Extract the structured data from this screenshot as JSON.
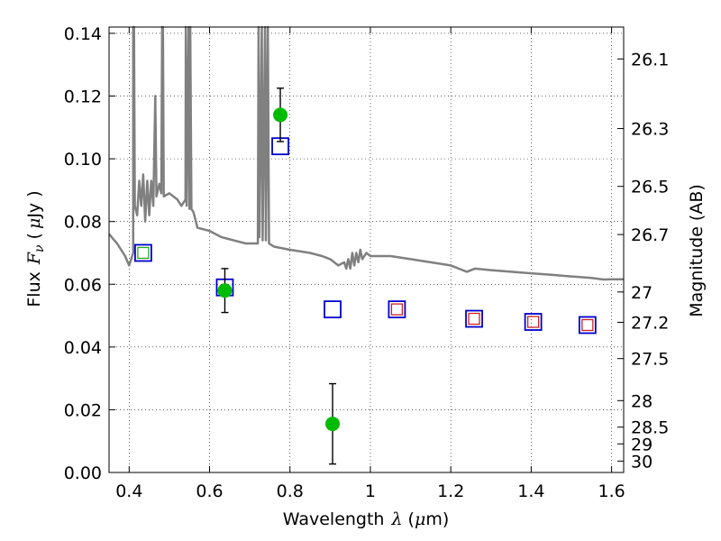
{
  "chart_data": {
    "type": "scatter",
    "xlabel": {
      "main": "Wavelength",
      "sym": "λ",
      "unit_open": "(",
      "unit_mu": "μ",
      "unit_rest": "m)"
    },
    "ylabel": {
      "main": "Flux",
      "sym": "F",
      "sub": "ν",
      "unit_open": "(",
      "unit_mu": "μ",
      "unit_rest": "Jy )"
    },
    "y2label": "Magnitude (AB)",
    "xlim": [
      0.35,
      1.63
    ],
    "ylim": [
      0.0,
      0.142
    ],
    "grid": true,
    "x_ticks": [
      0.4,
      0.6,
      0.8,
      1.0,
      1.2,
      1.4,
      1.6
    ],
    "x_tick_labels": [
      "0.4",
      "0.6",
      "0.8",
      "1",
      "1.2",
      "1.4",
      "1.6"
    ],
    "y_ticks": [
      0.0,
      0.02,
      0.04,
      0.06,
      0.08,
      0.1,
      0.12,
      0.14
    ],
    "y_tick_labels": [
      "0.00",
      "0.02",
      "0.04",
      "0.06",
      "0.08",
      "0.10",
      "0.12",
      "0.14"
    ],
    "mag_ticks": [
      "26.1",
      "26.3",
      "26.5",
      "26.7",
      "27",
      "27.2",
      "27.5",
      "28",
      "28.5",
      "29",
      "30"
    ],
    "model_spectrum": {
      "color": "#808080",
      "points": [
        [
          0.35,
          0.076
        ],
        [
          0.37,
          0.073
        ],
        [
          0.39,
          0.069
        ],
        [
          0.4,
          0.066
        ],
        [
          0.41,
          0.07
        ],
        [
          0.41,
          0.142
        ],
        [
          0.412,
          0.142
        ],
        [
          0.414,
          0.085
        ],
        [
          0.42,
          0.082
        ],
        [
          0.425,
          0.093
        ],
        [
          0.43,
          0.085
        ],
        [
          0.435,
          0.095
        ],
        [
          0.44,
          0.08
        ],
        [
          0.445,
          0.093
        ],
        [
          0.45,
          0.082
        ],
        [
          0.455,
          0.093
        ],
        [
          0.46,
          0.085
        ],
        [
          0.465,
          0.12
        ],
        [
          0.468,
          0.088
        ],
        [
          0.475,
          0.092
        ],
        [
          0.48,
          0.089
        ],
        [
          0.482,
          0.142
        ],
        [
          0.484,
          0.142
        ],
        [
          0.486,
          0.088
        ],
        [
          0.5,
          0.089
        ],
        [
          0.52,
          0.087
        ],
        [
          0.53,
          0.085
        ],
        [
          0.54,
          0.087
        ],
        [
          0.541,
          0.142
        ],
        [
          0.543,
          0.085
        ],
        [
          0.548,
          0.142
        ],
        [
          0.55,
          0.084
        ],
        [
          0.552,
          0.142
        ],
        [
          0.555,
          0.084
        ],
        [
          0.56,
          0.083
        ],
        [
          0.57,
          0.078
        ],
        [
          0.6,
          0.077
        ],
        [
          0.63,
          0.075
        ],
        [
          0.66,
          0.074
        ],
        [
          0.69,
          0.073
        ],
        [
          0.72,
          0.073
        ],
        [
          0.722,
          0.142
        ],
        [
          0.724,
          0.075
        ],
        [
          0.73,
          0.142
        ],
        [
          0.732,
          0.074
        ],
        [
          0.738,
          0.142
        ],
        [
          0.74,
          0.074
        ],
        [
          0.745,
          0.142
        ],
        [
          0.748,
          0.073
        ],
        [
          0.76,
          0.072
        ],
        [
          0.8,
          0.071
        ],
        [
          0.85,
          0.07
        ],
        [
          0.88,
          0.069
        ],
        [
          0.9,
          0.068
        ],
        [
          0.92,
          0.066
        ],
        [
          0.935,
          0.067
        ],
        [
          0.94,
          0.065
        ],
        [
          0.945,
          0.068
        ],
        [
          0.95,
          0.065
        ],
        [
          0.955,
          0.07
        ],
        [
          0.96,
          0.066
        ],
        [
          0.965,
          0.07
        ],
        [
          0.97,
          0.067
        ],
        [
          0.975,
          0.071
        ],
        [
          0.98,
          0.068
        ],
        [
          0.99,
          0.07
        ],
        [
          1.0,
          0.069
        ],
        [
          1.05,
          0.069
        ],
        [
          1.1,
          0.068
        ],
        [
          1.15,
          0.067
        ],
        [
          1.2,
          0.066
        ],
        [
          1.24,
          0.064
        ],
        [
          1.26,
          0.065
        ],
        [
          1.3,
          0.0645
        ],
        [
          1.35,
          0.064
        ],
        [
          1.4,
          0.0635
        ],
        [
          1.45,
          0.063
        ],
        [
          1.5,
          0.0625
        ],
        [
          1.55,
          0.062
        ],
        [
          1.58,
          0.0615
        ],
        [
          1.6,
          0.0616
        ],
        [
          1.63,
          0.0616
        ]
      ]
    },
    "model_photometry": {
      "color": "#0000cc",
      "points": [
        [
          0.435,
          0.07
        ],
        [
          0.638,
          0.059
        ],
        [
          0.776,
          0.104
        ],
        [
          0.906,
          0.052
        ],
        [
          1.066,
          0.052
        ],
        [
          1.258,
          0.049
        ],
        [
          1.405,
          0.048
        ],
        [
          1.54,
          0.047
        ]
      ]
    },
    "other_photometry": {
      "points": [
        {
          "x": 0.435,
          "y": 0.07,
          "color": "#22aa22"
        },
        {
          "x": 1.066,
          "y": 0.052,
          "color": "#cc2222"
        },
        {
          "x": 1.258,
          "y": 0.049,
          "color": "#cc2222"
        },
        {
          "x": 1.405,
          "y": 0.048,
          "color": "#cc2222"
        },
        {
          "x": 1.54,
          "y": 0.047,
          "color": "#cc2222"
        }
      ]
    },
    "observed": {
      "color": "#00bb00",
      "points": [
        {
          "x": 0.638,
          "y": 0.058,
          "err": 0.007
        },
        {
          "x": 0.776,
          "y": 0.114,
          "err": 0.0085
        },
        {
          "x": 0.906,
          "y": 0.0155,
          "err": 0.0128
        }
      ]
    }
  }
}
